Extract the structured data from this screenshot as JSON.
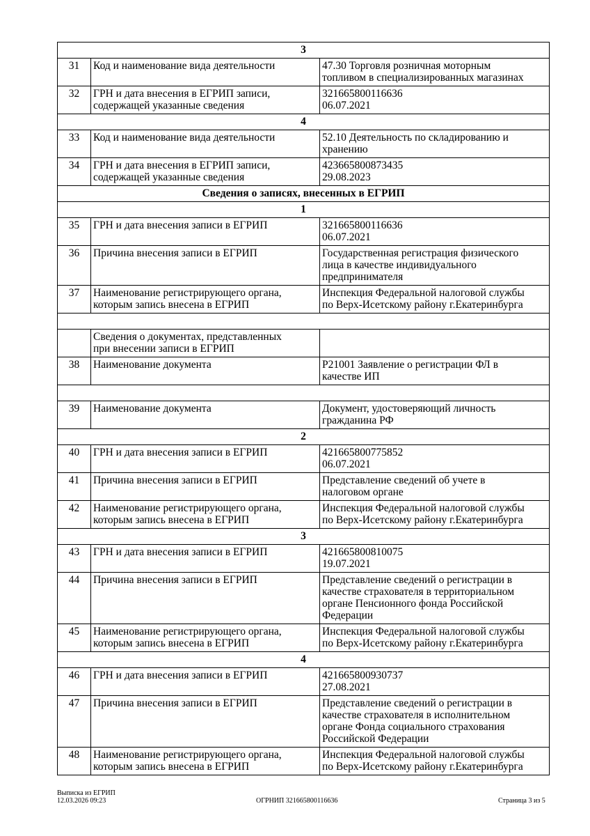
{
  "rows": [
    {
      "type": "section",
      "text": "3"
    },
    {
      "type": "row",
      "num": "31",
      "label": "Код и наименование вида деятельности",
      "value": "47.30 Торговля розничная моторным\nтопливом в специализированных магазинах"
    },
    {
      "type": "row",
      "num": "32",
      "label": "ГРН и дата внесения в ЕГРИП записи,\nсодержащей указанные сведения",
      "value": "321665800116636\n06.07.2021"
    },
    {
      "type": "section",
      "text": "4"
    },
    {
      "type": "row",
      "num": "33",
      "label": "Код и наименование вида деятельности",
      "value": "52.10 Деятельность по складированию и\nхранению"
    },
    {
      "type": "row",
      "num": "34",
      "label": "ГРН и дата внесения в ЕГРИП записи,\nсодержащей указанные сведения",
      "value": "423665800873435\n29.08.2023"
    },
    {
      "type": "section",
      "text": "Сведения о записях, внесенных в ЕГРИП"
    },
    {
      "type": "section",
      "text": "1"
    },
    {
      "type": "row",
      "num": "35",
      "label": "ГРН и дата внесения записи в ЕГРИП",
      "value": "321665800116636\n06.07.2021"
    },
    {
      "type": "row",
      "num": "36",
      "label": "Причина внесения записи в ЕГРИП",
      "value": "Государственная регистрация физического\nлица в качестве индивидуального\nпредпринимателя"
    },
    {
      "type": "row",
      "num": "37",
      "label": "Наименование регистрирующего органа,\nкоторым запись внесена в ЕГРИП",
      "value": "Инспекция Федеральной налоговой службы\nпо Верх-Исетскому району г.Екатеринбурга"
    },
    {
      "type": "blank"
    },
    {
      "type": "row",
      "num": "",
      "label": "Сведения о документах, представленных\nпри внесении записи в ЕГРИП",
      "value": ""
    },
    {
      "type": "row",
      "num": "38",
      "label": "Наименование документа",
      "value": "Р21001 Заявление о регистрации ФЛ в\nкачестве ИП"
    },
    {
      "type": "blank"
    },
    {
      "type": "row",
      "num": "39",
      "label": "Наименование документа",
      "value": "Документ, удостоверяющий личность\nгражданина РФ"
    },
    {
      "type": "section",
      "text": "2"
    },
    {
      "type": "row",
      "num": "40",
      "label": "ГРН и дата внесения записи в ЕГРИП",
      "value": "421665800775852\n06.07.2021"
    },
    {
      "type": "row",
      "num": "41",
      "label": "Причина внесения записи в ЕГРИП",
      "value": "Представление сведений об учете в\nналоговом органе"
    },
    {
      "type": "row",
      "num": "42",
      "label": "Наименование регистрирующего органа,\nкоторым запись внесена в ЕГРИП",
      "value": "Инспекция Федеральной налоговой службы\nпо Верх-Исетскому району г.Екатеринбурга"
    },
    {
      "type": "section",
      "text": "3"
    },
    {
      "type": "row",
      "num": "43",
      "label": "ГРН и дата внесения записи в ЕГРИП",
      "value": "421665800810075\n19.07.2021"
    },
    {
      "type": "row",
      "num": "44",
      "label": "Причина внесения записи в ЕГРИП",
      "value": "Представление сведений о регистрации в\nкачестве страхователя в территориальном\nоргане Пенсионного фонда Российской\nФедерации"
    },
    {
      "type": "row",
      "num": "45",
      "label": "Наименование регистрирующего органа,\nкоторым запись внесена в ЕГРИП",
      "value": "Инспекция Федеральной налоговой службы\nпо Верх-Исетскому району г.Екатеринбурга"
    },
    {
      "type": "section",
      "text": "4"
    },
    {
      "type": "row",
      "num": "46",
      "label": "ГРН и дата внесения записи в ЕГРИП",
      "value": "421665800930737\n27.08.2021"
    },
    {
      "type": "row",
      "num": "47",
      "label": "Причина внесения записи в ЕГРИП",
      "value": "Представление сведений о регистрации в\nкачестве страхователя в исполнительном\nоргане Фонда социального страхования\nРоссийской Федерации"
    },
    {
      "type": "row",
      "num": "48",
      "label": "Наименование регистрирующего органа,\nкоторым запись внесена в ЕГРИП",
      "value": "Инспекция Федеральной налоговой службы\nпо Верх-Исетскому району г.Екатеринбурга"
    }
  ],
  "footer": {
    "doc_title": "Выписка из ЕГРИП",
    "datetime": "12.03.2026 09:23",
    "ogrnip": "ОГРНИП 321665800116636",
    "page": "Страница 3 из 5"
  }
}
